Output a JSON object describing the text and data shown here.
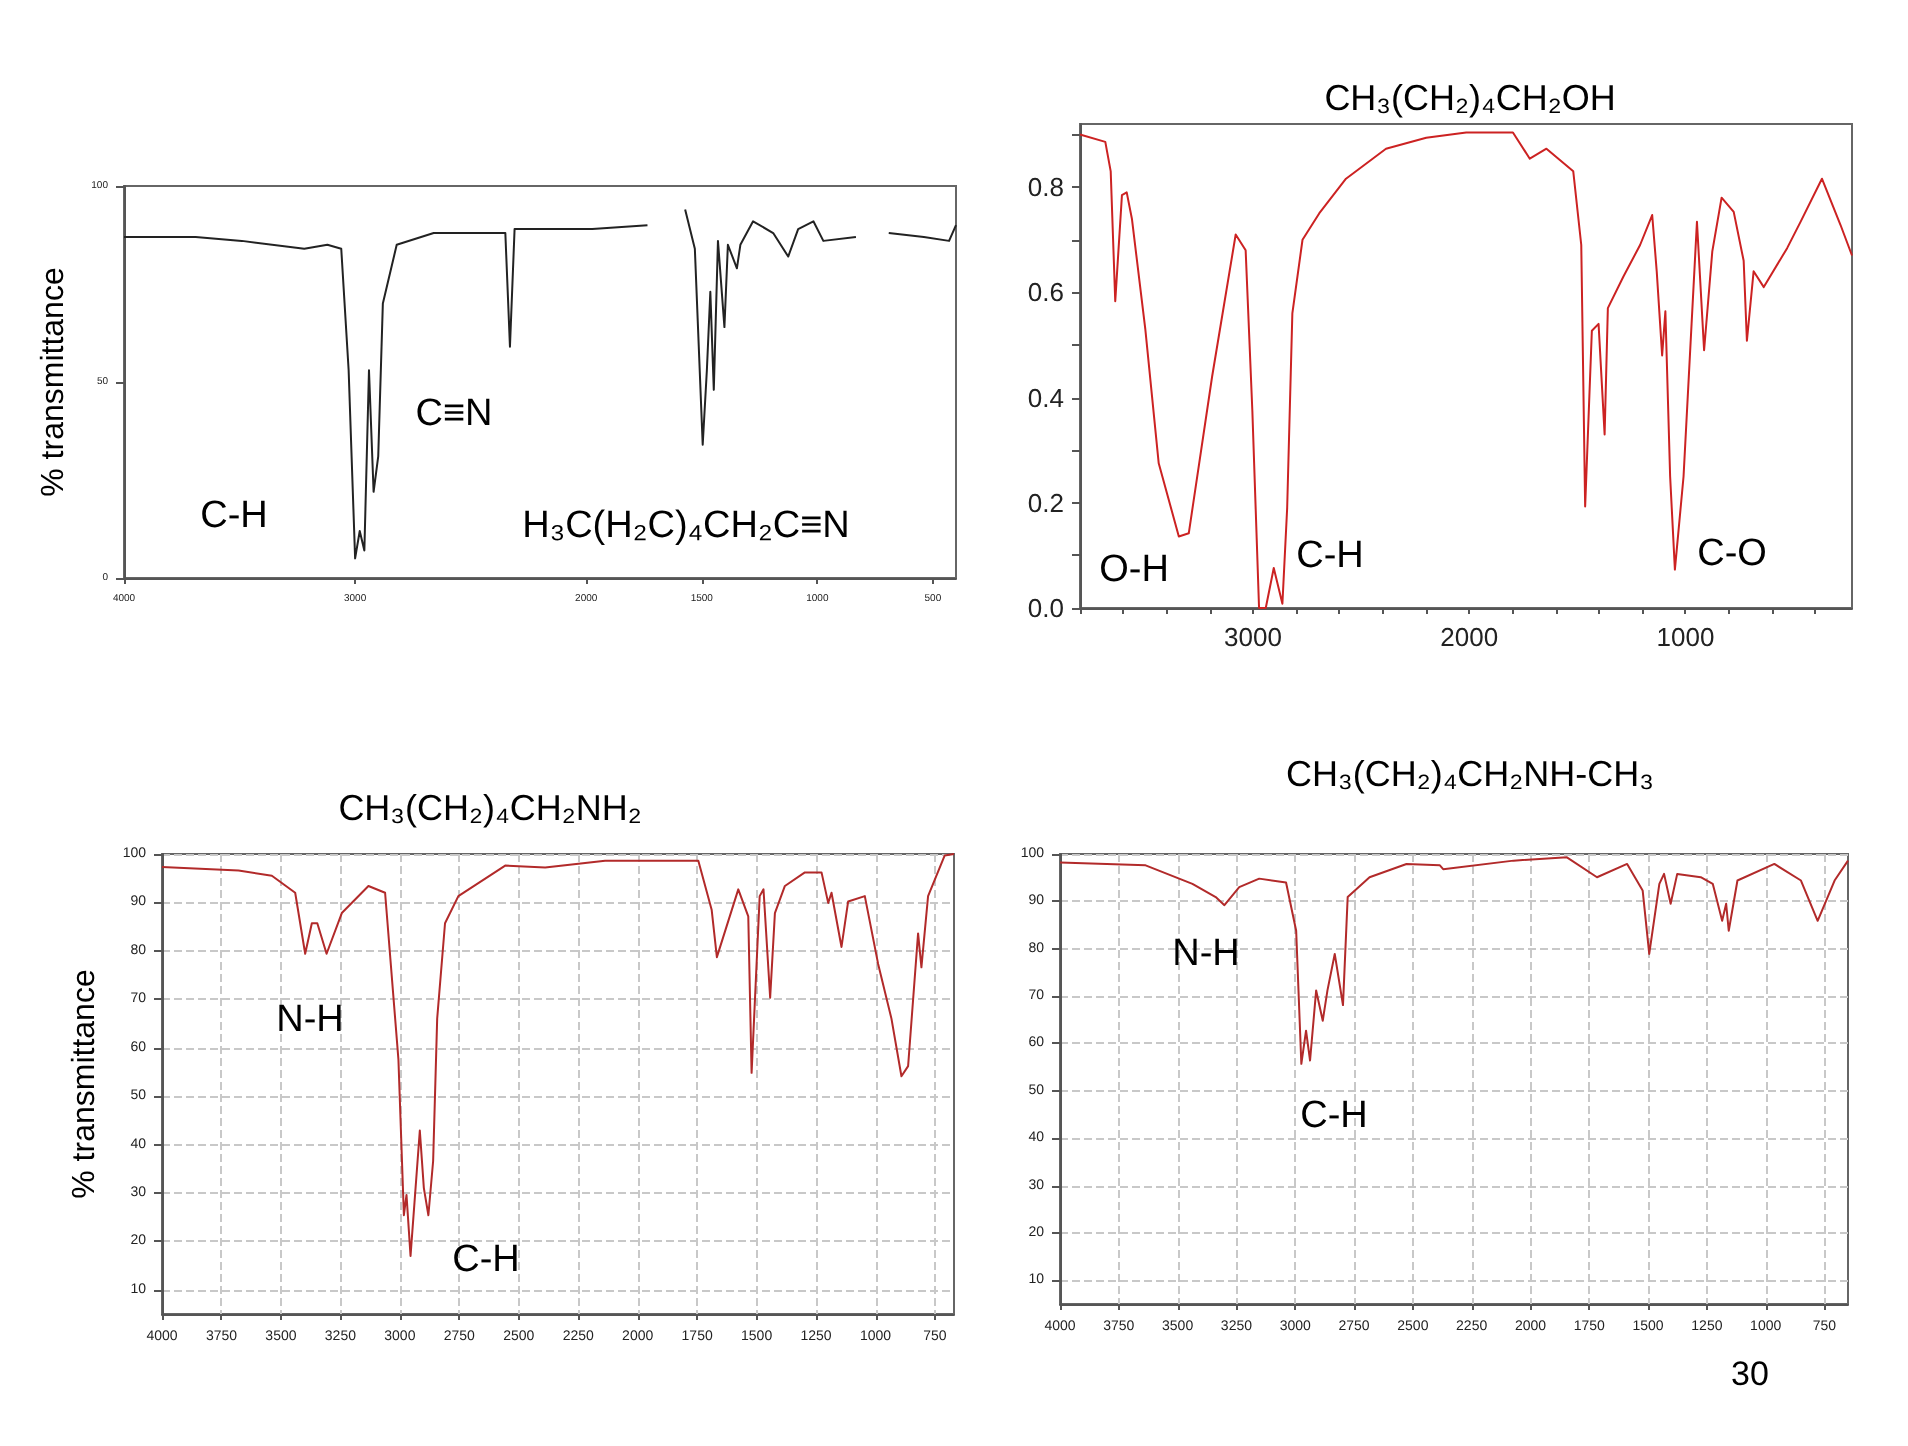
{
  "chart_data": [
    {
      "type": "line",
      "ylabel": "% transmittance",
      "color": "#222222",
      "x": [
        4000,
        3690,
        3490,
        3220,
        3120,
        3060,
        3028,
        3000,
        2980,
        2960,
        2940,
        2920,
        2900,
        2880,
        2820,
        2660,
        2350,
        2330,
        2310,
        1974,
        1735,
        1700,
        1572,
        1530,
        1496,
        1478,
        1463,
        1448,
        1430,
        1402,
        1387,
        1348,
        1333,
        1278,
        1191,
        1126,
        1083,
        1017,
        974,
        833,
        750,
        691,
        539,
        430,
        400
      ],
      "values": [
        87,
        87,
        86,
        84,
        85,
        84,
        53,
        5,
        12,
        7,
        53,
        22,
        31,
        70,
        85,
        88,
        88,
        59,
        89,
        89,
        90,
        null,
        94,
        84,
        34,
        53,
        73,
        48,
        86,
        64,
        85,
        79,
        85,
        91,
        88,
        82,
        89,
        91,
        86,
        87,
        null,
        88,
        87,
        86,
        90
      ],
      "xlim": [
        4000,
        400
      ],
      "xticks": [
        4000,
        3000,
        2000,
        1500,
        1000,
        500
      ],
      "ylim": [
        0,
        100
      ],
      "yticks": [
        0,
        50,
        100
      ],
      "annotations": [
        "C-H",
        "C≡N",
        "H₃C(H₂C)₄CH₂C≡N"
      ]
    },
    {
      "type": "line",
      "title": "CH₃(CH₂)₄CH₂OH",
      "color": "#cc2222",
      "x": [
        3800,
        3683,
        3658,
        3637,
        3606,
        3584,
        3560,
        3498,
        3436,
        3343,
        3297,
        3189,
        3080,
        3034,
        3003,
        2972,
        2941,
        2904,
        2864,
        2842,
        2818,
        2771,
        2694,
        2570,
        2385,
        2199,
        2014,
        1798,
        1720,
        1643,
        1519,
        1482,
        1464,
        1433,
        1402,
        1374,
        1359,
        1287,
        1210,
        1154,
        1133,
        1108,
        1093,
        1071,
        1049,
        1009,
        947,
        914,
        876,
        833,
        777,
        731,
        716,
        685,
        638,
        530,
        468,
        369,
        283,
        230
      ],
      "values": [
        0.9,
        0.886,
        0.83,
        0.583,
        0.785,
        0.79,
        0.74,
        0.53,
        0.275,
        0.136,
        0.142,
        0.44,
        0.71,
        0.68,
        0.375,
        0.0,
        0.0,
        0.076,
        0.008,
        0.19,
        0.56,
        0.7,
        0.75,
        0.816,
        0.873,
        0.894,
        0.904,
        0.904,
        0.854,
        0.873,
        0.83,
        0.69,
        0.193,
        0.527,
        0.54,
        0.33,
        0.57,
        0.63,
        0.69,
        0.747,
        0.64,
        0.48,
        0.564,
        0.25,
        0.073,
        0.25,
        0.734,
        0.49,
        0.678,
        0.78,
        0.753,
        0.66,
        0.508,
        0.64,
        0.61,
        0.684,
        0.734,
        0.816,
        0.728,
        0.67
      ],
      "xlim": [
        3800,
        230
      ],
      "xticks": [
        {
          "value": 3800,
          "label": null
        },
        {
          "value": 3600,
          "label": null
        },
        {
          "value": 3400,
          "label": null
        },
        {
          "value": 3200,
          "label": null
        },
        3000,
        {
          "value": 2800,
          "label": null
        },
        {
          "value": 2600,
          "label": null
        },
        {
          "value": 2400,
          "label": null
        },
        {
          "value": 2200,
          "label": null
        },
        2000,
        {
          "value": 1800,
          "label": null
        },
        {
          "value": 1600,
          "label": null
        },
        {
          "value": 1400,
          "label": null
        },
        {
          "value": 1200,
          "label": null
        },
        1000,
        {
          "value": 800,
          "label": null
        },
        {
          "value": 600,
          "label": null
        },
        {
          "value": 400,
          "label": null
        }
      ],
      "ylim": [
        0,
        0.92
      ],
      "yticks": [
        {
          "value": 0,
          "label": "0.0"
        },
        {
          "value": 0.1,
          "label": null
        },
        0.2,
        {
          "value": 0.3,
          "label": null
        },
        0.4,
        {
          "value": 0.5,
          "label": null
        },
        0.6,
        {
          "value": 0.7,
          "label": null
        },
        0.8,
        {
          "value": 0.9,
          "label": null
        }
      ],
      "annotations": [
        "O-H",
        "C-H",
        "C-O"
      ]
    },
    {
      "type": "line",
      "title": "CH₃(CH₂)₄CH₂NH₂",
      "ylabel": "% transmittance",
      "color": "#b22a2a",
      "grid": true,
      "x": [
        4000,
        3678,
        3538,
        3440,
        3398,
        3370,
        3347,
        3308,
        3244,
        3132,
        3062,
        3006,
        2983,
        2972,
        2955,
        2916,
        2899,
        2880,
        2860,
        2843,
        2810,
        2754,
        2557,
        2389,
        2137,
        1745,
        1689,
        1667,
        1577,
        1535,
        1521,
        1487,
        1471,
        1443,
        1423,
        1381,
        1297,
        1227,
        1199,
        1185,
        1143,
        1115,
        1045,
        989,
        933,
        891,
        863,
        821,
        807,
        779,
        709,
        670
      ],
      "values": [
        97.3,
        96.6,
        95.5,
        92,
        79.4,
        85.7,
        85.7,
        79.4,
        87.8,
        93.4,
        92,
        57.6,
        25.4,
        29.6,
        17,
        42.9,
        31,
        25.4,
        36.6,
        66,
        85.7,
        91.3,
        97.6,
        97.2,
        98.6,
        98.6,
        88.5,
        78.7,
        92.7,
        87.1,
        54.8,
        91.3,
        92.7,
        70.3,
        87.8,
        93.4,
        96.2,
        96.2,
        89.9,
        92,
        80.8,
        90.2,
        91.3,
        77.3,
        66,
        54.1,
        56.2,
        83.6,
        76.6,
        91.3,
        99.7,
        100
      ],
      "xlim": [
        4000,
        670
      ],
      "xticks": [
        4000,
        3750,
        3500,
        3250,
        3000,
        2750,
        2500,
        2250,
        2000,
        1750,
        1500,
        1250,
        1000,
        750
      ],
      "ylim": [
        5,
        100
      ],
      "yticks": [
        10,
        20,
        30,
        40,
        50,
        60,
        70,
        80,
        90,
        100
      ],
      "annotations": [
        "N-H",
        "C-H"
      ]
    },
    {
      "type": "line",
      "title": "CH₃(CH₂)₄CH₂NH-CH₃",
      "color": "#b22a2a",
      "grid": true,
      "x": [
        4000,
        3636,
        3437,
        3338,
        3301,
        3238,
        3153,
        3039,
        2996,
        2974,
        2954,
        2937,
        2911,
        2883,
        2863,
        2832,
        2797,
        2777,
        2684,
        2527,
        2385,
        2371,
        2072,
        1845,
        1717,
        1589,
        1523,
        1495,
        1452,
        1432,
        1404,
        1376,
        1276,
        1225,
        1185,
        1168,
        1157,
        1120,
        963,
        850,
        779,
        707,
        650
      ],
      "values": [
        98.2,
        97.6,
        93.7,
        90.9,
        89.2,
        93,
        94.8,
        94,
        83.8,
        55.7,
        62.7,
        56.4,
        71.2,
        64.8,
        71.2,
        78.9,
        68.1,
        90.9,
        95.1,
        97.9,
        97.6,
        96.8,
        98.6,
        99.3,
        95.1,
        97.9,
        92.3,
        78.9,
        93.7,
        95.8,
        89.5,
        95.8,
        95.1,
        93.7,
        85.9,
        89.5,
        83.8,
        94.4,
        97.9,
        94.4,
        85.9,
        94.4,
        98.6
      ],
      "xlim": [
        4000,
        650
      ],
      "xticks": [
        4000,
        3750,
        3500,
        3250,
        3000,
        2750,
        2500,
        2250,
        2000,
        1750,
        1500,
        1250,
        1000,
        750
      ],
      "ylim": [
        5,
        100
      ],
      "yticks": [
        10,
        20,
        30,
        40,
        50,
        60,
        70,
        80,
        90,
        100
      ],
      "annotations": [
        "N-H",
        "C-H",
        "30"
      ]
    }
  ]
}
